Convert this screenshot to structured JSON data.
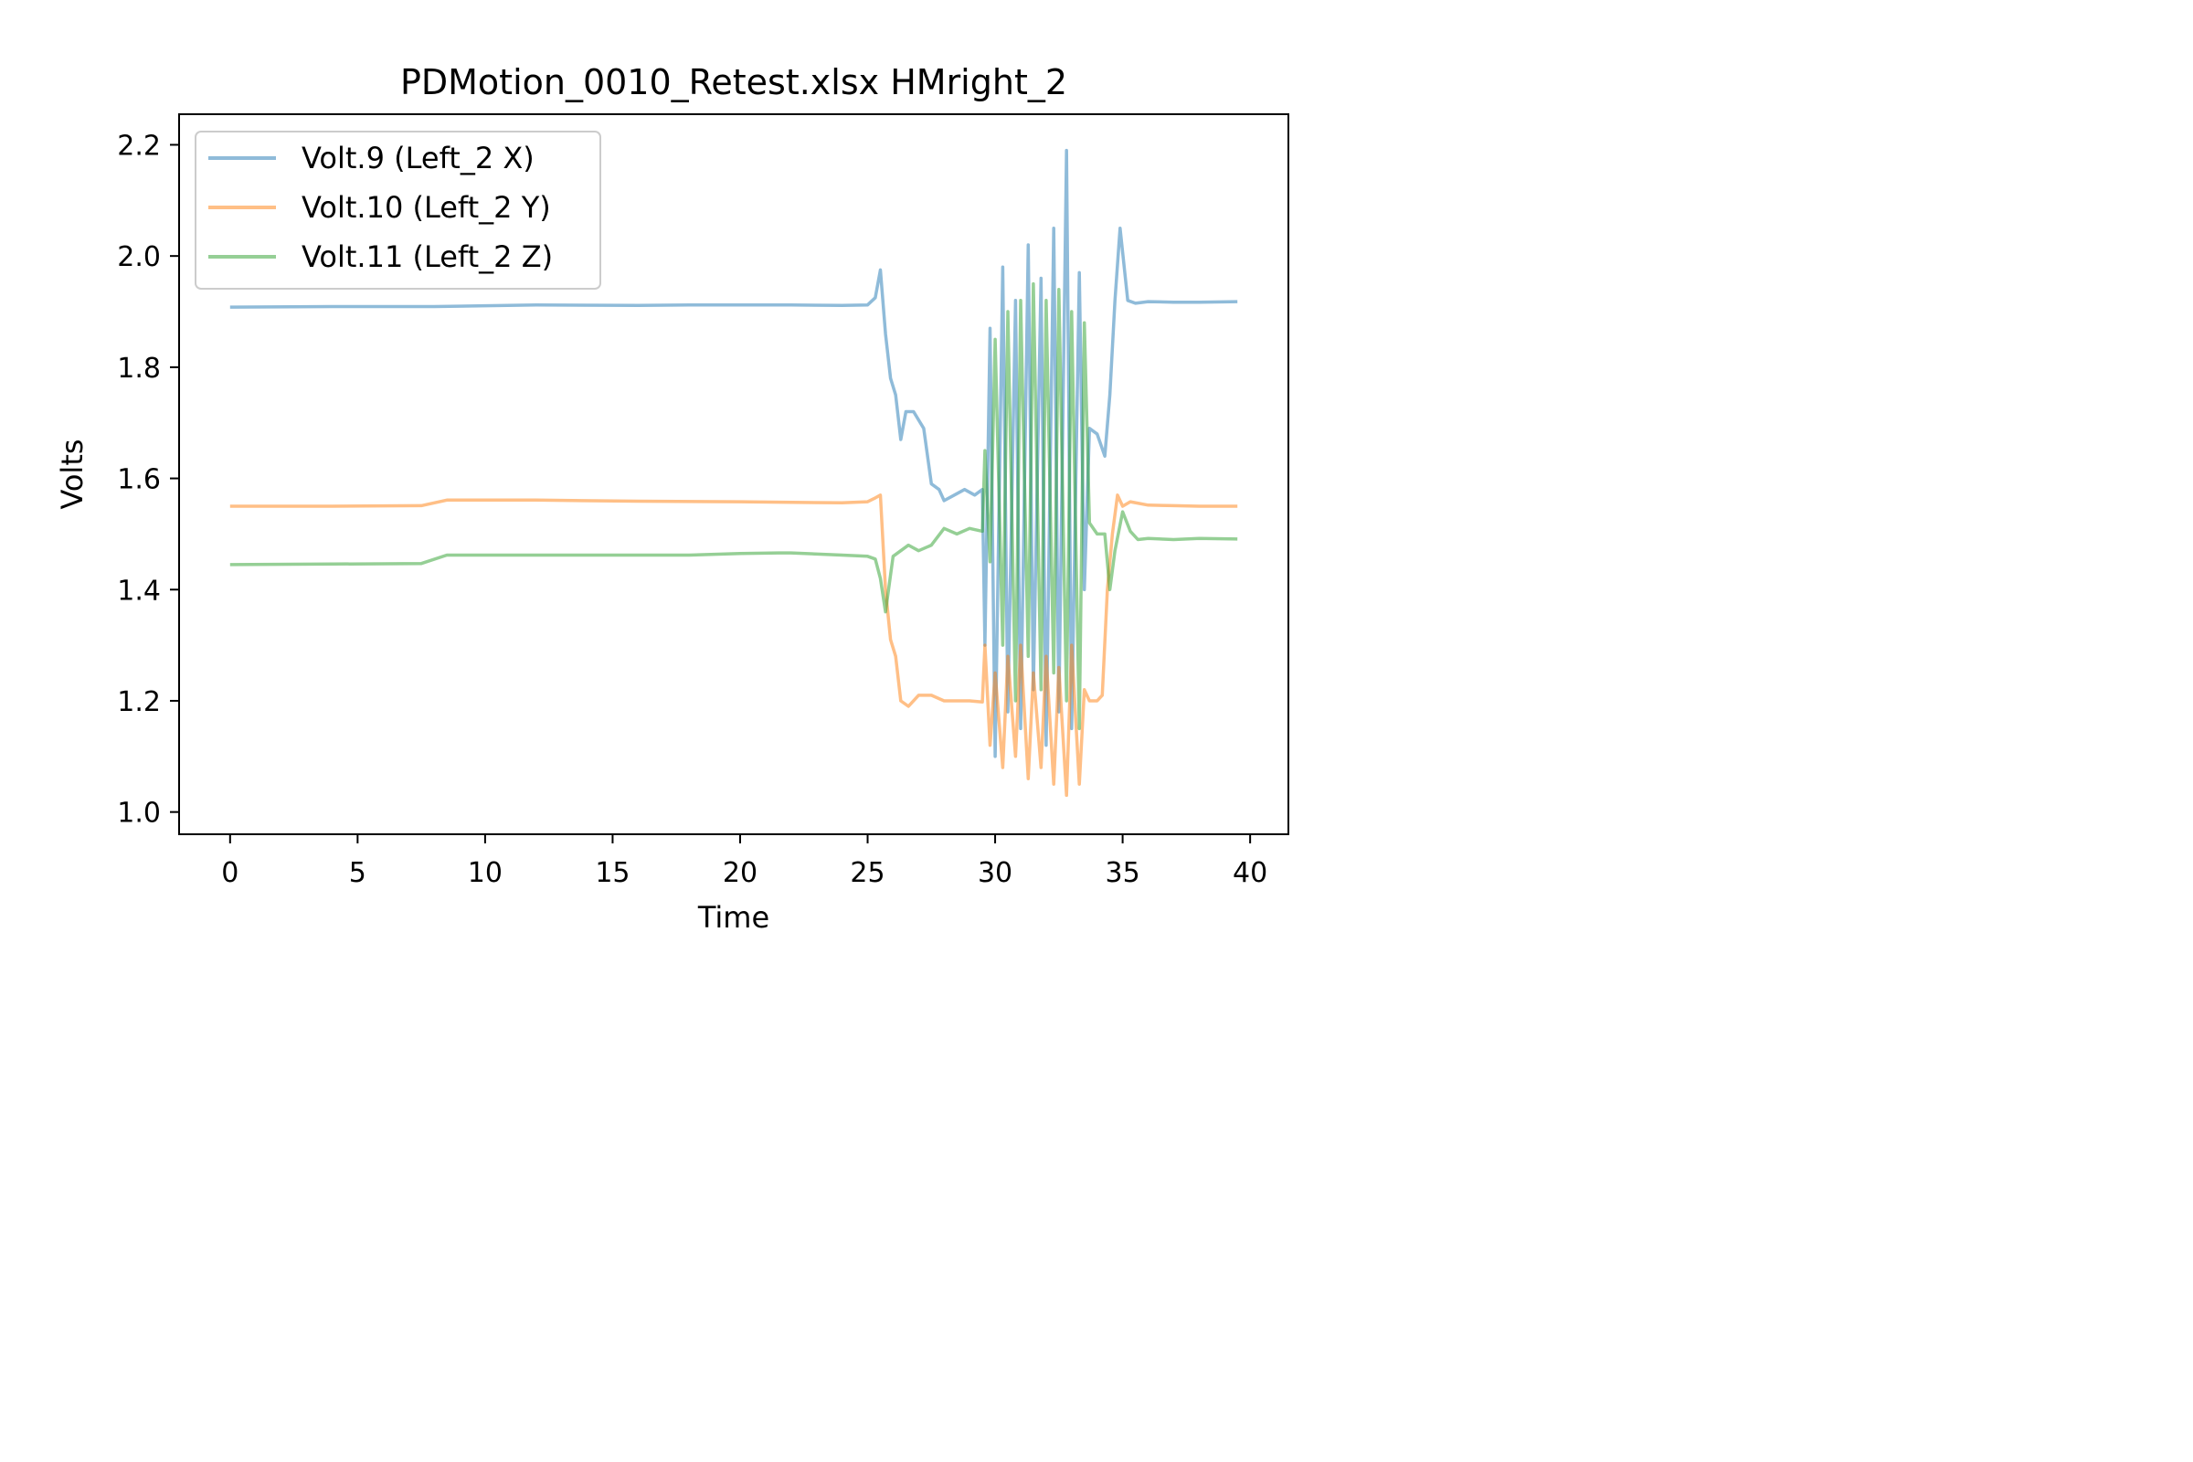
{
  "chart_data": {
    "type": "line",
    "title": "PDMotion_0010_Retest.xlsx HMright_2",
    "xlabel": "Time",
    "ylabel": "Volts",
    "xlim": [
      -2,
      41.5
    ],
    "ylim": [
      0.96,
      2.255
    ],
    "xticks": [
      0,
      5,
      10,
      15,
      20,
      25,
      30,
      35,
      40
    ],
    "yticks": [
      1.0,
      1.2,
      1.4,
      1.6,
      1.8,
      2.0,
      2.2
    ],
    "xtick_labels": [
      "0",
      "5",
      "10",
      "15",
      "20",
      "25",
      "30",
      "35",
      "40"
    ],
    "ytick_labels": [
      "1.0",
      "1.2",
      "1.4",
      "1.6",
      "1.8",
      "2.0",
      "2.2"
    ],
    "grid": false,
    "legend_position": "upper-left",
    "series": [
      {
        "name": "Volt.9 (Left_2 X)",
        "color": "#1f77b4",
        "x": [
          0,
          4,
          8,
          12,
          16,
          18,
          20,
          22,
          24,
          25,
          25.3,
          25.5,
          25.7,
          25.9,
          26.1,
          26.3,
          26.5,
          26.8,
          27.2,
          27.5,
          27.8,
          28.0,
          28.4,
          28.8,
          29.2,
          29.5,
          29.6,
          29.8,
          30.0,
          30.3,
          30.5,
          30.8,
          31.0,
          31.3,
          31.5,
          31.8,
          32.0,
          32.3,
          32.5,
          32.8,
          33.0,
          33.3,
          33.5,
          33.7,
          34.0,
          34.3,
          34.5,
          34.7,
          34.9,
          35.2,
          35.5,
          36,
          37,
          38,
          39.5
        ],
        "y": [
          1.908,
          1.909,
          1.909,
          1.912,
          1.911,
          1.912,
          1.912,
          1.912,
          1.911,
          1.912,
          1.925,
          1.975,
          1.86,
          1.78,
          1.75,
          1.67,
          1.72,
          1.72,
          1.69,
          1.59,
          1.58,
          1.56,
          1.57,
          1.58,
          1.57,
          1.58,
          1.3,
          1.87,
          1.1,
          1.98,
          1.18,
          1.92,
          1.15,
          2.02,
          1.22,
          1.96,
          1.12,
          2.05,
          1.18,
          2.19,
          1.15,
          1.97,
          1.4,
          1.69,
          1.68,
          1.64,
          1.75,
          1.92,
          2.05,
          1.92,
          1.915,
          1.918,
          1.917,
          1.917,
          1.918
        ]
      },
      {
        "name": "Volt.10 (Left_2 Y)",
        "color": "#ff7f0e",
        "x": [
          0,
          4,
          7.5,
          8.5,
          12,
          16,
          20,
          24,
          25,
          25.3,
          25.5,
          25.7,
          25.9,
          26.1,
          26.3,
          26.6,
          27.0,
          27.5,
          28.0,
          28.5,
          29.0,
          29.5,
          29.6,
          29.8,
          30.0,
          30.3,
          30.5,
          30.8,
          31.0,
          31.3,
          31.5,
          31.8,
          32.0,
          32.3,
          32.5,
          32.8,
          33.0,
          33.3,
          33.5,
          33.7,
          34.0,
          34.2,
          34.4,
          34.6,
          34.8,
          35.0,
          35.3,
          36,
          37,
          38,
          39.5
        ],
        "y": [
          1.55,
          1.55,
          1.551,
          1.561,
          1.561,
          1.559,
          1.558,
          1.556,
          1.558,
          1.565,
          1.57,
          1.4,
          1.31,
          1.28,
          1.2,
          1.19,
          1.21,
          1.21,
          1.2,
          1.2,
          1.2,
          1.198,
          1.3,
          1.12,
          1.25,
          1.08,
          1.28,
          1.1,
          1.3,
          1.06,
          1.25,
          1.08,
          1.28,
          1.05,
          1.26,
          1.03,
          1.3,
          1.05,
          1.22,
          1.2,
          1.2,
          1.21,
          1.4,
          1.5,
          1.57,
          1.55,
          1.558,
          1.552,
          1.551,
          1.55,
          1.55
        ]
      },
      {
        "name": "Volt.11 (Left_2 Z)",
        "color": "#2ca02c",
        "x": [
          0,
          4,
          7.5,
          8.5,
          12,
          16,
          18,
          20,
          21.5,
          22,
          24,
          25,
          25.3,
          25.5,
          25.7,
          26.0,
          26.3,
          26.6,
          27.0,
          27.5,
          28.0,
          28.5,
          29.0,
          29.5,
          29.6,
          29.8,
          30.0,
          30.3,
          30.5,
          30.8,
          31.0,
          31.3,
          31.5,
          31.8,
          32.0,
          32.3,
          32.5,
          32.8,
          33.0,
          33.3,
          33.5,
          33.7,
          34.0,
          34.3,
          34.5,
          34.7,
          35.0,
          35.3,
          35.6,
          36,
          37,
          38,
          39.5
        ],
        "y": [
          1.445,
          1.446,
          1.447,
          1.462,
          1.462,
          1.462,
          1.462,
          1.465,
          1.466,
          1.466,
          1.462,
          1.46,
          1.455,
          1.42,
          1.36,
          1.46,
          1.47,
          1.48,
          1.47,
          1.48,
          1.51,
          1.5,
          1.51,
          1.505,
          1.65,
          1.45,
          1.85,
          1.3,
          1.9,
          1.2,
          1.92,
          1.28,
          1.95,
          1.22,
          1.92,
          1.25,
          1.94,
          1.2,
          1.9,
          1.15,
          1.88,
          1.52,
          1.5,
          1.5,
          1.4,
          1.47,
          1.54,
          1.505,
          1.49,
          1.492,
          1.49,
          1.492,
          1.491
        ]
      }
    ]
  }
}
